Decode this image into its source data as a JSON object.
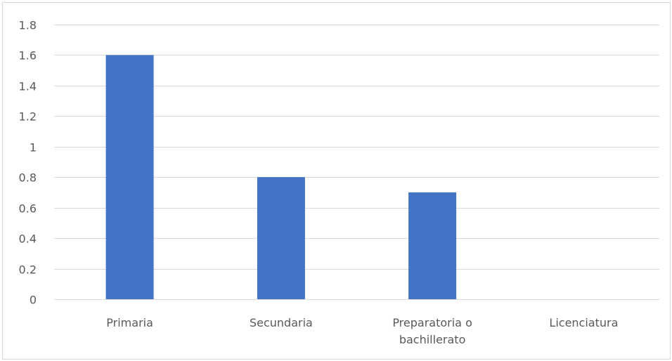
{
  "chart_data": {
    "type": "bar",
    "categories": [
      "Primaria",
      "Secundaria",
      "Preparatoria o bachillerato",
      "Licenciatura"
    ],
    "category_label_lines": [
      [
        "Primaria"
      ],
      [
        "Secundaria"
      ],
      [
        "Preparatoria o",
        "bachillerato"
      ],
      [
        "Licenciatura"
      ]
    ],
    "values": [
      1.6,
      0.8,
      0.7,
      0
    ],
    "ylim": [
      0,
      1.8
    ],
    "yticks": [
      0,
      0.2,
      0.4,
      0.6,
      0.8,
      1,
      1.2,
      1.4,
      1.6,
      1.8
    ],
    "ytick_labels": [
      "0",
      "0.2",
      "0.4",
      "0.6",
      "0.8",
      "1",
      "1.2",
      "1.4",
      "1.6",
      "1.8"
    ],
    "grid": true,
    "legend": "none",
    "bar_color": "#4472c4",
    "grid_color": "#d9d9d9",
    "text_color": "#595959"
  }
}
